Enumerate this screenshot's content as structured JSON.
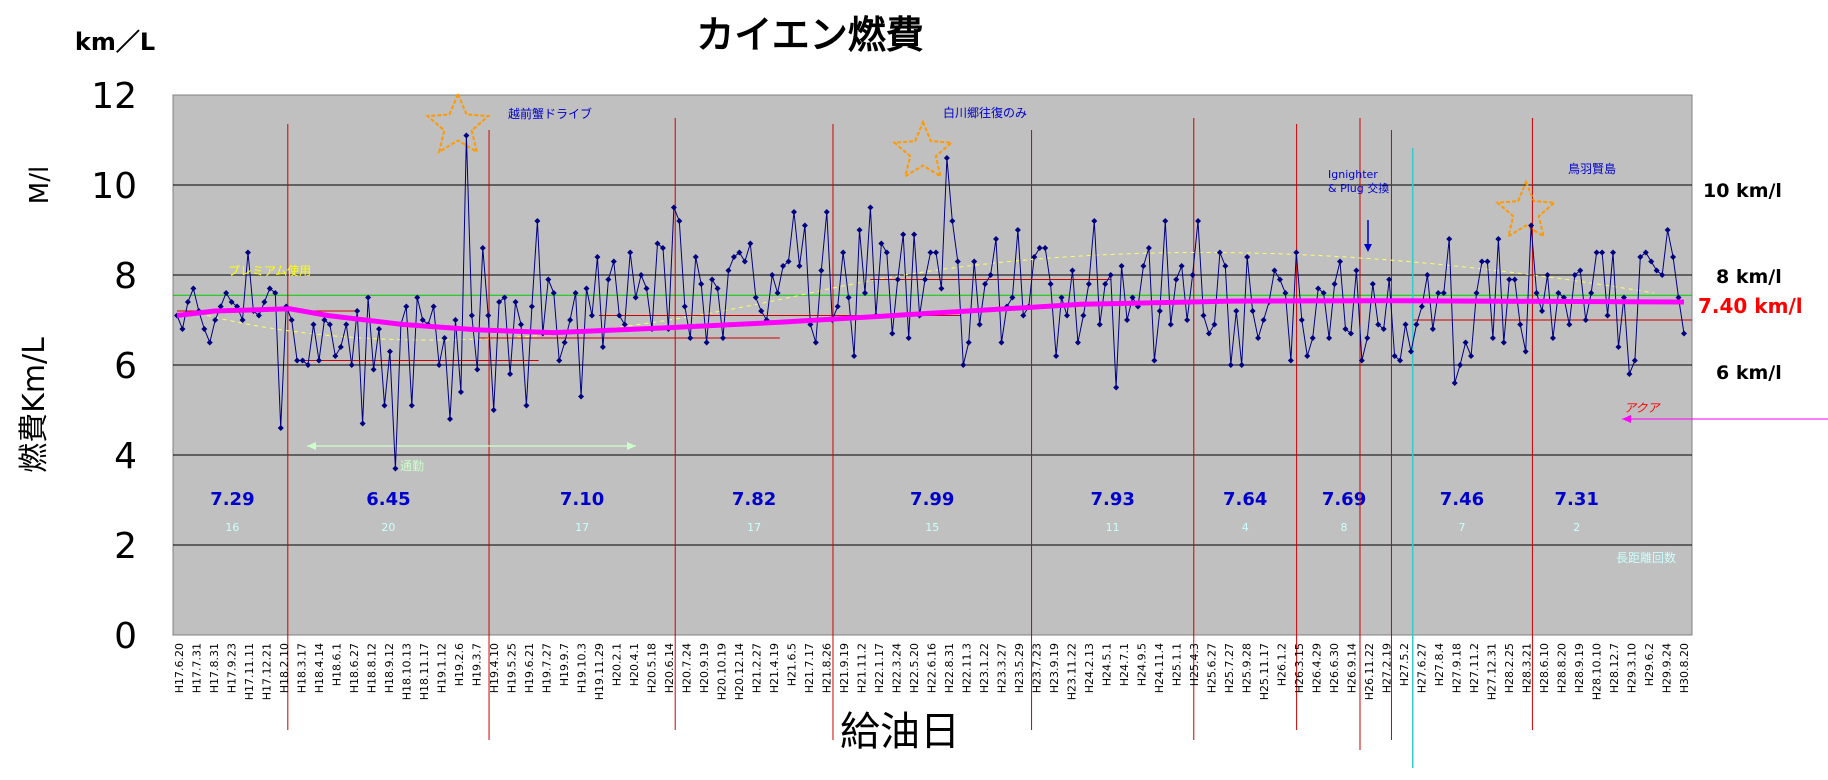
{
  "chart_data": {
    "type": "line",
    "title": "カイエン燃費",
    "unit_label": "km／L",
    "side_label": "M/l",
    "ylabel": "燃費Km/L",
    "xlabel": "給油日",
    "ylim": [
      0,
      12
    ],
    "yticks": [
      "0",
      "2",
      "4",
      "6",
      "8",
      "10",
      "12"
    ],
    "grid": true,
    "plot_background": "#c0c0c0",
    "colors": {
      "fuel_series": "#000080",
      "running_average": "#ff00ff",
      "period_divider": "#cc0000",
      "annotation_blue": "#0000cc",
      "green_ref": "#00cc00",
      "cyan_divider": "#33cccc",
      "star": "#ff9900"
    },
    "reference_lines": [
      {
        "label": "10 km/l",
        "value": 10
      },
      {
        "label": "8 km/l",
        "value": 8
      },
      {
        "label": "6 km/l",
        "value": 6
      }
    ],
    "average_label": "7.40 km/l",
    "x_tick_labels": [
      "H17.6.20",
      "H17.7.31",
      "H17.8.31",
      "H17.9.23",
      "H17.11.11",
      "H17.12.21",
      "H18.2.10",
      "H18.3.17",
      "H18.4.14",
      "H18.6.1",
      "H18.6.27",
      "H18.8.12",
      "H18.9.12",
      "H18.10.13",
      "H18.11.17",
      "H19.1.12",
      "H19.2.6",
      "H19.3.7",
      "H19.4.10",
      "H19.5.25",
      "H19.6.21",
      "H19.7.27",
      "H19.9.7",
      "H19.10.3",
      "H19.11.29",
      "H20.2.1",
      "H20.4.1",
      "H20.5.18",
      "H20.6.14",
      "H20.7.24",
      "H20.9.19",
      "H20.10.19",
      "H20.12.14",
      "H21.2.27",
      "H21.4.19",
      "H21.6.5",
      "H21.7.17",
      "H21.8.26",
      "H21.9.19",
      "H21.11.2",
      "H22.1.17",
      "H22.3.24",
      "H22.5.20",
      "H22.6.16",
      "H22.8.31",
      "H22.11.3",
      "H23.1.22",
      "H23.3.27",
      "H23.5.29",
      "H23.7.23",
      "H23.9.19",
      "H23.11.22",
      "H24.2.13",
      "H24.5.1",
      "H24.7.1",
      "H24.9.5",
      "H24.11.4",
      "H25.1.1",
      "H25.4.3",
      "H25.6.27",
      "H25.7.27",
      "H25.9.28",
      "H25.11.17",
      "H26.1.2",
      "H26.3.15",
      "H26.4.29",
      "H26.6.30",
      "H26.9.14",
      "H26.11.22",
      "H27.2.19",
      "H27.5.2",
      "H27.6.27",
      "H27.8.4",
      "H27.9.18",
      "H27.11.2",
      "H27.12.31",
      "H28.2.25",
      "H28.3.21",
      "H28.6.10",
      "H28.8.20",
      "H28.9.19",
      "H28.10.10",
      "H28.12.7",
      "H29.3.10",
      "H29.6.2",
      "H29.9.24",
      "H30.8.20"
    ],
    "series": [
      {
        "name": "",
        "values": [
          7.1,
          6.8,
          7.4,
          7.7,
          7.2,
          6.8,
          6.5,
          7.0,
          7.3,
          7.6,
          7.4,
          7.3,
          7.0,
          8.5,
          7.2,
          7.1,
          7.4,
          7.7,
          7.6,
          4.6,
          7.3,
          7.0,
          6.1,
          6.1,
          6.0,
          6.9,
          6.1,
          7.0,
          6.9,
          6.2,
          6.4,
          6.9,
          6.0,
          7.2,
          4.7,
          7.5,
          5.9,
          6.8,
          5.1,
          6.3,
          3.7,
          6.9,
          7.3,
          5.1,
          7.5,
          7.0,
          6.9,
          7.3,
          6.0,
          6.6,
          4.8,
          7.0,
          5.4,
          11.1,
          7.1,
          5.9,
          8.6,
          7.1,
          5.0,
          7.4,
          7.5,
          5.8,
          7.4,
          6.9,
          5.1,
          7.3,
          9.2,
          6.7,
          7.9,
          7.6,
          6.1,
          6.5,
          7.0,
          7.6,
          5.3,
          7.7,
          7.1,
          8.4,
          6.4,
          7.9,
          8.3,
          7.1,
          6.9,
          8.5,
          7.5,
          8.0,
          7.7,
          6.8,
          8.7,
          8.6,
          6.8,
          9.5,
          9.2,
          7.3,
          6.6,
          8.4,
          7.8,
          6.5,
          7.9,
          7.7,
          6.6,
          8.1,
          8.4,
          8.5,
          8.3,
          8.7,
          7.5,
          7.2,
          7.0,
          8.0,
          7.6,
          8.2,
          8.3,
          9.4,
          8.2,
          9.1,
          6.9,
          6.5,
          8.1,
          9.4,
          7.0,
          7.3,
          8.5,
          7.5,
          6.2,
          9.0,
          7.6,
          9.5,
          7.1,
          8.7,
          8.5,
          6.7,
          7.9,
          8.9,
          6.6,
          8.9,
          7.1,
          7.9,
          8.5,
          8.5,
          7.7,
          10.6,
          9.2,
          8.3,
          6.0,
          6.5,
          8.3,
          6.9,
          7.8,
          8.0,
          8.8,
          6.5,
          7.3,
          7.5,
          9.0,
          7.1,
          7.3,
          8.4,
          8.6,
          8.6,
          7.8,
          6.2,
          7.5,
          7.1,
          8.1,
          6.5,
          7.1,
          7.8,
          9.2,
          6.9,
          7.8,
          8.0,
          5.5,
          8.2,
          7.0,
          7.5,
          7.3,
          8.2,
          8.6,
          6.1,
          7.2,
          9.2,
          6.9,
          7.9,
          8.2,
          7.0,
          8.0,
          9.2,
          7.1,
          6.7,
          6.9,
          8.5,
          8.2,
          6.0,
          7.2,
          6.0,
          8.4,
          7.2,
          6.6,
          7.0,
          7.4,
          8.1,
          7.9,
          7.6,
          6.1,
          8.5,
          7.0,
          6.2,
          6.6,
          7.7,
          7.6,
          6.6,
          7.8,
          8.3,
          6.8,
          6.7,
          8.1,
          6.1,
          6.6,
          7.8,
          6.9,
          6.8,
          7.9,
          6.2,
          6.1,
          6.9,
          6.3,
          6.9,
          7.3,
          8.0,
          6.8,
          7.6,
          7.6,
          8.8,
          5.6,
          6.0,
          6.5,
          6.2,
          7.6,
          8.3,
          8.3,
          6.6,
          8.8,
          6.5,
          7.9,
          7.9,
          6.9,
          6.3,
          9.1,
          7.6,
          7.2,
          8.0,
          6.6,
          7.6,
          7.5,
          6.9,
          8.0,
          8.1,
          7.0,
          7.6,
          8.5,
          8.5,
          7.1,
          8.5,
          6.4,
          7.5,
          5.8,
          6.1,
          8.4,
          8.5,
          8.3,
          8.1,
          8.0,
          9.0,
          8.4,
          7.5,
          6.7
        ]
      }
    ],
    "running_average": [
      {
        "at": 0,
        "value": 7.1
      },
      {
        "at": 0.025,
        "value": 7.2
      },
      {
        "at": 0.075,
        "value": 7.25
      },
      {
        "at": 0.1,
        "value": 7.1
      },
      {
        "at": 0.15,
        "value": 6.9
      },
      {
        "at": 0.2,
        "value": 6.78
      },
      {
        "at": 0.25,
        "value": 6.72
      },
      {
        "at": 0.32,
        "value": 6.82
      },
      {
        "at": 0.4,
        "value": 6.95
      },
      {
        "at": 0.5,
        "value": 7.15
      },
      {
        "at": 0.6,
        "value": 7.35
      },
      {
        "at": 0.7,
        "value": 7.42
      },
      {
        "at": 0.8,
        "value": 7.43
      },
      {
        "at": 1.0,
        "value": 7.4
      }
    ],
    "periods": [
      {
        "average": "7.29",
        "count": "16",
        "start": 0.0,
        "end": 0.125
      },
      {
        "average": "6.45",
        "count": "20",
        "start": 0.125,
        "end": 0.352
      },
      {
        "average": "7.10",
        "count": "17",
        "start": 0.352,
        "end": 0.562
      },
      {
        "average": "7.82",
        "count": "17",
        "start": 0.562,
        "end": 0.74
      },
      {
        "average": "7.99",
        "count": "15",
        "start": 0.74,
        "end": 0.964
      },
      {
        "average": "7.93",
        "count": "11",
        "start": 0.964,
        "end": 1.147
      },
      {
        "average": "7.64",
        "count": "4",
        "start": 1.147,
        "end": 1.263
      },
      {
        "average": "7.69",
        "count": "8",
        "start": 1.263,
        "end": 1.37
      },
      {
        "average": "7.46",
        "count": "7",
        "start": 1.37,
        "end": 1.529
      },
      {
        "average": "7.31",
        "count": "2",
        "start": 1.529,
        "end": 1.629
      }
    ],
    "annotations": {
      "echizen": "越前蟹ドライブ",
      "shirakawa": "白川郷往復のみ",
      "ignighter": "Ignighter",
      "plug": "& Plug 交換",
      "toba": "鳥羽賢島",
      "tsukin": "通勤",
      "fuel": "プレミアム使用",
      "aqua": "アクア",
      "long_count": "長距離回数"
    }
  }
}
